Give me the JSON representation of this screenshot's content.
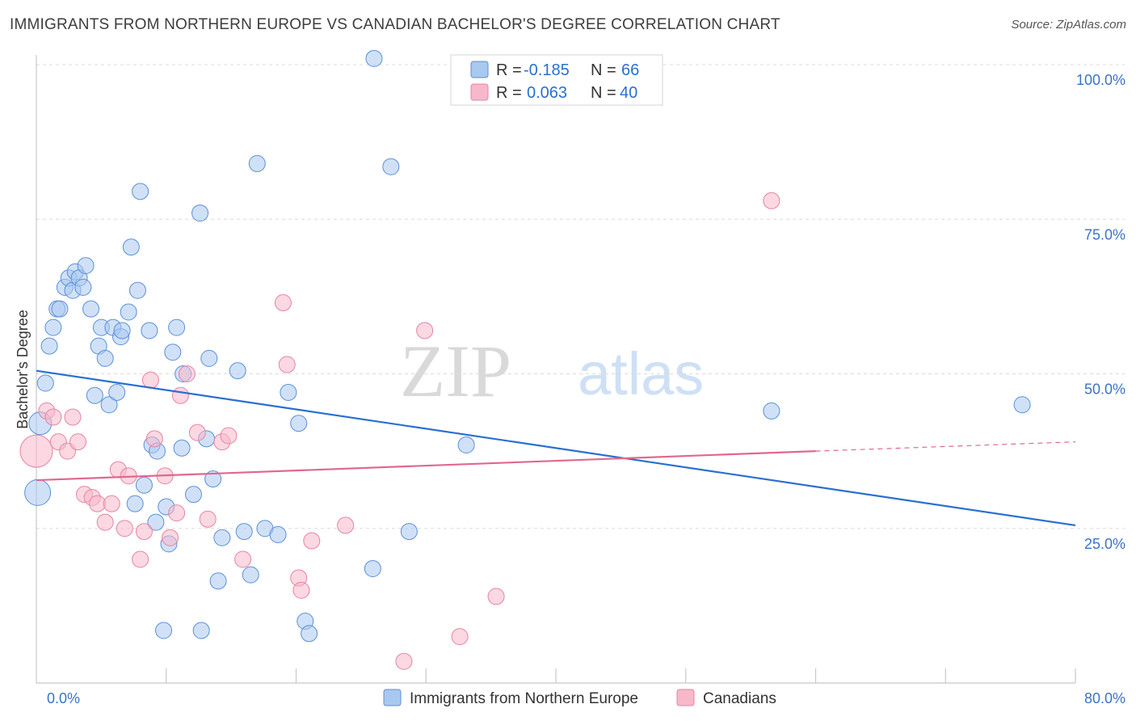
{
  "header": {
    "title": "IMMIGRANTS FROM NORTHERN EUROPE VS CANADIAN BACHELOR'S DEGREE CORRELATION CHART",
    "source": "Source: ZipAtlas.com"
  },
  "watermark": {
    "part1": "ZIP",
    "part2": "atlas"
  },
  "legend_top": {
    "rows": [
      {
        "r_label": "R =",
        "r_value": "-0.185",
        "n_label": "N =",
        "n_value": "66"
      },
      {
        "r_label": "R =",
        "r_value": "0.063",
        "n_label": "N =",
        "n_value": "40"
      }
    ]
  },
  "legend_bottom": {
    "items": [
      "Immigrants from Northern Europe",
      "Canadians"
    ]
  },
  "colors": {
    "blue_fill": "#a9c8f0",
    "blue_stroke": "#5b8fd8",
    "blue_line": "#2a6fd1",
    "pink_fill": "#f7b8cb",
    "pink_stroke": "#e7839f",
    "pink_line": "#e0688f",
    "tick_text": "#3b72c9",
    "grid": "#dcdcdc",
    "text_dark": "#333333"
  },
  "chart_data": {
    "type": "scatter",
    "title": "IMMIGRANTS FROM NORTHERN EUROPE VS CANADIAN BACHELOR'S DEGREE CORRELATION CHART",
    "xlabel": "",
    "ylabel": "Bachelor's Degree",
    "xlim": [
      0,
      80
    ],
    "ylim": [
      0,
      100
    ],
    "x_tick_labels": {
      "left": "0.0%",
      "right": "80.0%"
    },
    "y_ticks": [
      {
        "value": 100,
        "label": "100.0%"
      },
      {
        "value": 75,
        "label": "75.0%"
      },
      {
        "value": 50,
        "label": "50.0%"
      },
      {
        "value": 25,
        "label": "25.0%"
      }
    ],
    "series": [
      {
        "name": "Immigrants from Northern Europe",
        "color": "#5b8fd8",
        "r": -0.185,
        "n": 66,
        "trend": {
          "x0": 0,
          "y0": 50.5,
          "x1": 80,
          "y1": 25.5
        },
        "points": [
          [
            0.1,
            30.8,
            16
          ],
          [
            0.3,
            42.0,
            14
          ],
          [
            0.7,
            48.5,
            10
          ],
          [
            1.0,
            54.5,
            10
          ],
          [
            1.3,
            57.5,
            10
          ],
          [
            1.6,
            60.5,
            10
          ],
          [
            1.8,
            60.5,
            10
          ],
          [
            2.2,
            64.0,
            10
          ],
          [
            2.5,
            65.5,
            10
          ],
          [
            2.8,
            63.5,
            10
          ],
          [
            3.0,
            66.5,
            10
          ],
          [
            3.3,
            65.5,
            10
          ],
          [
            3.6,
            64.0,
            10
          ],
          [
            3.8,
            67.5,
            10
          ],
          [
            4.2,
            60.5,
            10
          ],
          [
            4.5,
            46.5,
            10
          ],
          [
            4.8,
            54.5,
            10
          ],
          [
            5.0,
            57.5,
            10
          ],
          [
            5.3,
            52.5,
            10
          ],
          [
            5.6,
            45.0,
            10
          ],
          [
            5.9,
            57.5,
            10
          ],
          [
            6.2,
            47.0,
            10
          ],
          [
            6.5,
            56.0,
            10
          ],
          [
            6.6,
            57.0,
            10
          ],
          [
            7.1,
            60.0,
            10
          ],
          [
            7.3,
            70.5,
            10
          ],
          [
            7.6,
            29.0,
            10
          ],
          [
            7.8,
            63.5,
            10
          ],
          [
            8.0,
            79.5,
            10
          ],
          [
            8.3,
            32.0,
            10
          ],
          [
            8.7,
            57.0,
            10
          ],
          [
            8.9,
            38.5,
            10
          ],
          [
            9.2,
            26.0,
            10
          ],
          [
            9.3,
            37.5,
            10
          ],
          [
            9.8,
            8.5,
            10
          ],
          [
            10.0,
            28.5,
            10
          ],
          [
            10.2,
            22.5,
            10
          ],
          [
            10.5,
            53.5,
            10
          ],
          [
            10.8,
            57.5,
            10
          ],
          [
            11.2,
            38.0,
            10
          ],
          [
            11.3,
            50.0,
            10
          ],
          [
            12.1,
            30.5,
            10
          ],
          [
            12.6,
            76.0,
            10
          ],
          [
            12.7,
            8.5,
            10
          ],
          [
            13.1,
            39.5,
            10
          ],
          [
            13.3,
            52.5,
            10
          ],
          [
            13.6,
            33.0,
            10
          ],
          [
            14.0,
            16.5,
            10
          ],
          [
            14.3,
            23.5,
            10
          ],
          [
            15.5,
            50.5,
            10
          ],
          [
            16.0,
            24.5,
            10
          ],
          [
            16.5,
            17.5,
            10
          ],
          [
            17.0,
            84.0,
            10
          ],
          [
            17.6,
            25.0,
            10
          ],
          [
            18.6,
            24.0,
            10
          ],
          [
            19.4,
            47.0,
            10
          ],
          [
            20.2,
            42.0,
            10
          ],
          [
            20.7,
            10.0,
            10
          ],
          [
            21.0,
            8.0,
            10
          ],
          [
            25.9,
            18.5,
            10
          ],
          [
            26.0,
            101.0,
            10
          ],
          [
            27.3,
            83.5,
            10
          ],
          [
            28.7,
            24.5,
            10
          ],
          [
            33.1,
            38.5,
            10
          ],
          [
            56.6,
            44.0,
            10
          ],
          [
            75.9,
            45.0,
            10
          ]
        ]
      },
      {
        "name": "Canadians",
        "color": "#e7839f",
        "r": 0.063,
        "n": 40,
        "trend": {
          "x0": 0,
          "y0": 32.8,
          "x1": 60.0,
          "y1": 37.5
        },
        "trend_dashed_to": {
          "x": 80,
          "y": 39.0
        },
        "points": [
          [
            0.0,
            37.5,
            20
          ],
          [
            0.8,
            44.0,
            10
          ],
          [
            1.3,
            43.0,
            10
          ],
          [
            1.7,
            39.0,
            10
          ],
          [
            2.4,
            37.5,
            10
          ],
          [
            2.8,
            43.0,
            10
          ],
          [
            3.2,
            39.0,
            10
          ],
          [
            3.7,
            30.5,
            10
          ],
          [
            4.3,
            30.0,
            10
          ],
          [
            4.7,
            29.0,
            10
          ],
          [
            5.3,
            26.0,
            10
          ],
          [
            5.8,
            29.0,
            10
          ],
          [
            6.3,
            34.5,
            10
          ],
          [
            6.8,
            25.0,
            10
          ],
          [
            7.1,
            33.5,
            10
          ],
          [
            8.0,
            20.0,
            10
          ],
          [
            8.3,
            24.5,
            10
          ],
          [
            8.8,
            49.0,
            10
          ],
          [
            9.1,
            39.5,
            10
          ],
          [
            9.9,
            33.5,
            10
          ],
          [
            10.3,
            23.5,
            10
          ],
          [
            10.8,
            27.5,
            10
          ],
          [
            11.1,
            46.5,
            10
          ],
          [
            11.6,
            50.0,
            10
          ],
          [
            12.4,
            40.5,
            10
          ],
          [
            13.2,
            26.5,
            10
          ],
          [
            14.3,
            39.0,
            10
          ],
          [
            14.8,
            40.0,
            10
          ],
          [
            15.9,
            20.0,
            10
          ],
          [
            19.0,
            61.5,
            10
          ],
          [
            19.3,
            51.5,
            10
          ],
          [
            20.2,
            17.0,
            10
          ],
          [
            20.4,
            15.0,
            10
          ],
          [
            21.2,
            23.0,
            10
          ],
          [
            23.8,
            25.5,
            10
          ],
          [
            28.3,
            3.5,
            10
          ],
          [
            29.9,
            57.0,
            10
          ],
          [
            32.6,
            7.5,
            10
          ],
          [
            35.4,
            14.0,
            10
          ],
          [
            56.6,
            78.0,
            10
          ]
        ]
      }
    ]
  }
}
